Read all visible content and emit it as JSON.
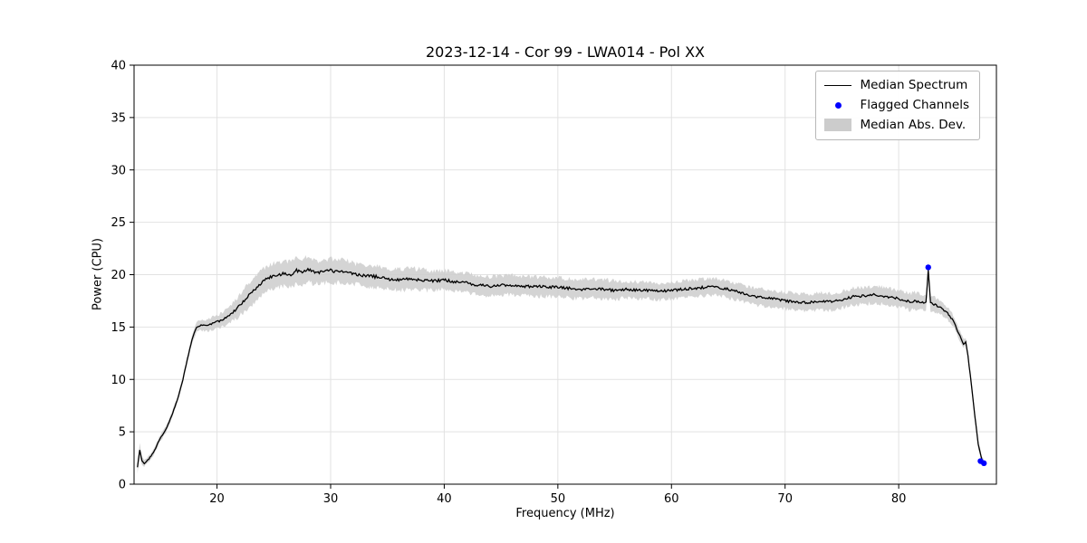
{
  "chart": {
    "title": "2023-12-14 - Cor 99 - LWA014 - Pol XX",
    "xlabel": "Frequency (MHz)",
    "ylabel": "Power (CPU)"
  },
  "chart_data": {
    "type": "line",
    "title": "2023-12-14 - Cor 99 - LWA014 - Pol XX",
    "xlabel": "Frequency (MHz)",
    "ylabel": "Power (CPU)",
    "xlim": [
      12.7,
      88.6
    ],
    "ylim": [
      0,
      40
    ],
    "xticks": [
      20,
      30,
      40,
      50,
      60,
      70,
      80
    ],
    "yticks": [
      0,
      5,
      10,
      15,
      20,
      25,
      30,
      35,
      40
    ],
    "grid": true,
    "legend_position": "upper right",
    "legend": [
      "Median Spectrum",
      "Flagged Channels",
      "Median Abs. Dev."
    ],
    "colors": {
      "line": "#000000",
      "flagged": "#0000ff",
      "band": "#cccccc",
      "grid": "#e2e2e2",
      "axis": "#000000"
    },
    "noise_amplitude": 0.15,
    "band_noise_amplitude": 0.25,
    "series": [
      {
        "name": "Median Spectrum",
        "x": [
          13.0,
          13.2,
          13.4,
          13.6,
          14.0,
          14.5,
          15.0,
          15.5,
          16.0,
          16.5,
          17.0,
          17.4,
          17.8,
          18.2,
          18.6,
          19.0,
          19.5,
          20.0,
          20.5,
          21.0,
          21.5,
          22.0,
          22.5,
          23.0,
          23.5,
          24.0,
          24.5,
          25.0,
          25.5,
          26.0,
          26.5,
          27.0,
          27.5,
          28.0,
          28.5,
          29.0,
          29.5,
          30.0,
          30.5,
          31.0,
          31.5,
          32.0,
          33.0,
          34.0,
          35.0,
          36.0,
          37.0,
          38.0,
          39.0,
          40.0,
          41.0,
          42.0,
          43.0,
          44.0,
          45.0,
          46.0,
          47.0,
          48.0,
          49.0,
          50.0,
          51.0,
          52.0,
          53.0,
          54.0,
          55.0,
          56.0,
          57.0,
          58.0,
          59.0,
          60.0,
          61.0,
          62.0,
          63.0,
          64.0,
          65.0,
          66.0,
          67.0,
          68.0,
          69.0,
          70.0,
          71.0,
          72.0,
          73.0,
          74.0,
          75.0,
          76.0,
          77.0,
          78.0,
          79.0,
          80.0,
          80.5,
          81.0,
          81.5,
          82.0,
          82.4,
          82.6,
          82.8,
          83.2,
          83.6,
          84.0,
          84.4,
          84.8,
          85.2,
          85.5,
          85.7,
          85.9,
          86.1,
          86.4,
          86.7,
          87.0,
          87.3,
          87.5
        ],
        "y": [
          1.6,
          3.3,
          2.2,
          2.0,
          2.4,
          3.2,
          4.4,
          5.2,
          6.5,
          8.0,
          10.0,
          12.0,
          13.8,
          15.0,
          15.2,
          15.1,
          15.3,
          15.5,
          15.7,
          16.1,
          16.5,
          17.1,
          17.7,
          18.2,
          18.7,
          19.3,
          19.7,
          19.9,
          20.0,
          20.1,
          20.0,
          20.4,
          20.3,
          20.5,
          20.3,
          20.2,
          20.3,
          20.4,
          20.3,
          20.4,
          20.2,
          20.1,
          19.9,
          19.8,
          19.6,
          19.5,
          19.6,
          19.5,
          19.4,
          19.5,
          19.3,
          19.2,
          19.0,
          18.9,
          19.0,
          19.0,
          18.9,
          18.9,
          18.8,
          18.8,
          18.7,
          18.6,
          18.7,
          18.6,
          18.5,
          18.6,
          18.5,
          18.5,
          18.4,
          18.5,
          18.6,
          18.7,
          18.8,
          18.8,
          18.6,
          18.3,
          18.0,
          17.8,
          17.7,
          17.5,
          17.4,
          17.3,
          17.5,
          17.4,
          17.6,
          17.9,
          18.0,
          18.1,
          17.9,
          17.7,
          17.6,
          17.4,
          17.5,
          17.4,
          17.3,
          20.5,
          17.3,
          17.1,
          16.9,
          16.6,
          16.2,
          15.6,
          14.6,
          13.9,
          13.4,
          13.6,
          12.2,
          9.5,
          6.5,
          3.8,
          2.4,
          2.0
        ],
        "mad": [
          0.5,
          0.6,
          0.4,
          0.3,
          0.3,
          0.3,
          0.3,
          0.3,
          0.3,
          0.3,
          0.3,
          0.3,
          0.4,
          0.5,
          0.5,
          0.5,
          0.6,
          0.6,
          0.7,
          0.8,
          0.9,
          1.0,
          1.1,
          1.1,
          1.2,
          1.2,
          1.2,
          1.2,
          1.2,
          1.2,
          1.2,
          1.3,
          1.2,
          1.2,
          1.2,
          1.1,
          1.1,
          1.1,
          1.1,
          1.1,
          1.1,
          1.0,
          1.0,
          1.0,
          1.0,
          1.0,
          1.0,
          1.0,
          0.9,
          0.9,
          0.9,
          0.9,
          0.9,
          0.9,
          0.9,
          0.9,
          0.9,
          0.9,
          0.9,
          0.9,
          0.9,
          0.9,
          0.9,
          0.9,
          0.9,
          0.8,
          0.8,
          0.8,
          0.8,
          0.8,
          0.8,
          0.8,
          0.8,
          0.8,
          0.8,
          0.8,
          0.8,
          0.8,
          0.8,
          0.8,
          0.8,
          0.8,
          0.8,
          0.8,
          0.8,
          0.8,
          0.8,
          0.8,
          0.8,
          0.8,
          0.8,
          0.8,
          0.8,
          0.7,
          0.7,
          0.7,
          0.7,
          0.7,
          0.6,
          0.6,
          0.6,
          0.5,
          0.5,
          0.5,
          0.4,
          0.4,
          0.4,
          0.4,
          0.4,
          0.4,
          0.3,
          0.3
        ]
      }
    ],
    "flagged": {
      "name": "Flagged Channels",
      "x": [
        82.6,
        87.2,
        87.5
      ],
      "y": [
        20.7,
        2.2,
        2.0
      ]
    }
  }
}
